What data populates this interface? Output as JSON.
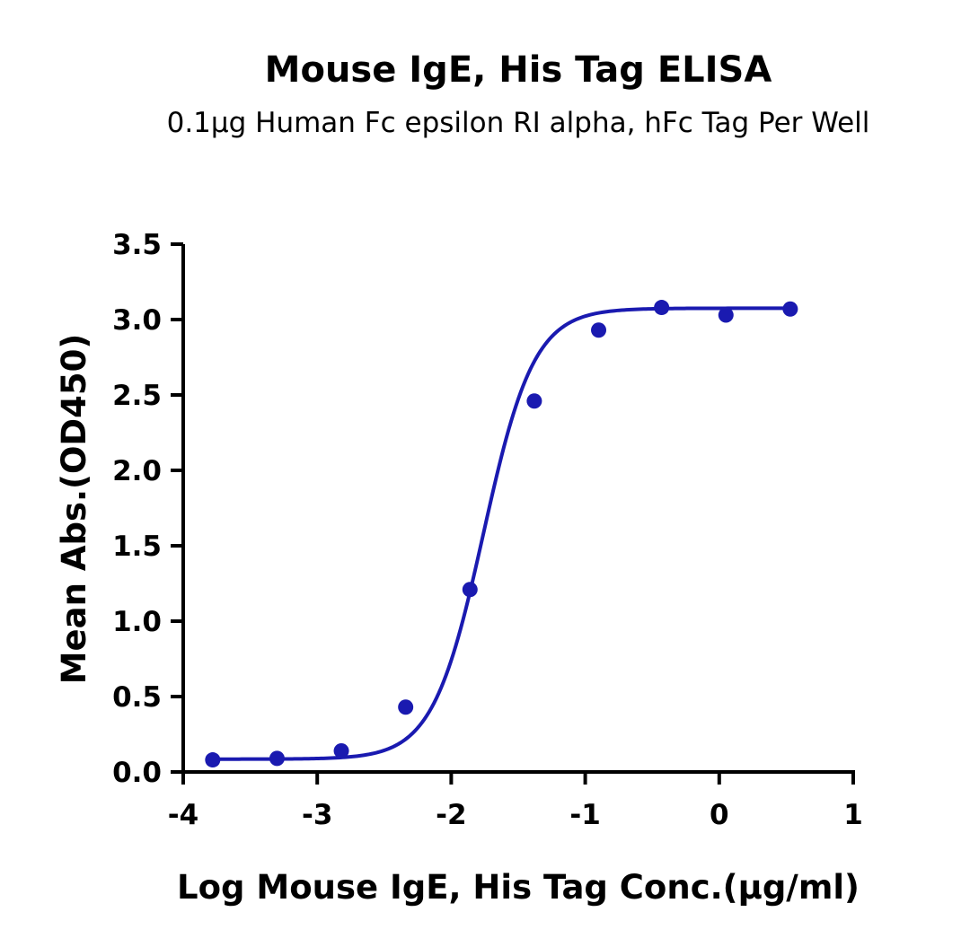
{
  "chart_data": {
    "type": "scatter",
    "title": "Mouse IgE, His Tag ELISA",
    "subtitle": "0.1μg Human Fc epsilon RI alpha, hFc Tag Per Well",
    "xlabel": "Log Mouse IgE, His Tag Conc.(μg/ml)",
    "ylabel": "Mean Abs.(OD450)",
    "xlim": [
      -4,
      1
    ],
    "ylim": [
      0,
      3.5
    ],
    "x_ticks": [
      "-4",
      "-3",
      "-2",
      "-1",
      "0",
      "1"
    ],
    "y_ticks": [
      "0.0",
      "0.5",
      "1.0",
      "1.5",
      "2.0",
      "2.5",
      "3.0",
      "3.5"
    ],
    "grid": false,
    "legend": "none",
    "series": [
      {
        "color": "#1a1ab0",
        "points": [
          {
            "x": -3.78,
            "y": 0.08
          },
          {
            "x": -3.3,
            "y": 0.09
          },
          {
            "x": -2.82,
            "y": 0.14
          },
          {
            "x": -2.34,
            "y": 0.43
          },
          {
            "x": -1.86,
            "y": 1.21
          },
          {
            "x": -1.38,
            "y": 2.46
          },
          {
            "x": -0.9,
            "y": 2.93
          },
          {
            "x": -0.43,
            "y": 3.08
          },
          {
            "x": 0.05,
            "y": 3.03
          },
          {
            "x": 0.53,
            "y": 3.07
          }
        ],
        "fit": {
          "model": "4PL",
          "bottom": 0.085,
          "top": 3.075,
          "logEC50": -1.76,
          "hill": 2.3
        }
      }
    ]
  }
}
